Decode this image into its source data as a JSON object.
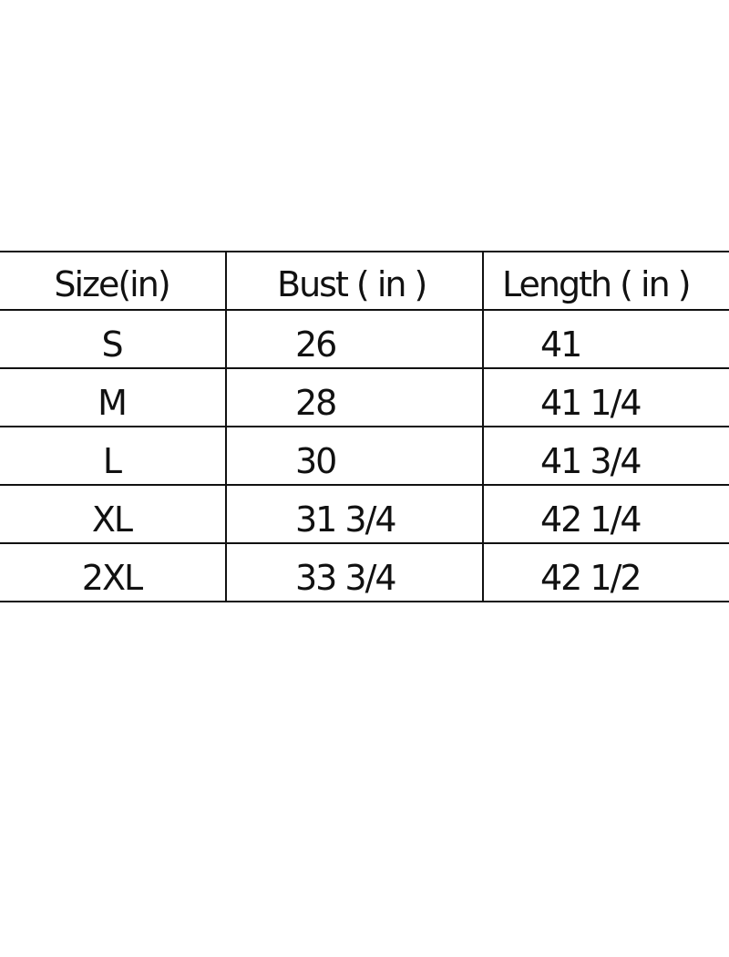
{
  "table": {
    "headers": [
      "Size(in)",
      "Bust ( in )",
      "Length ( in )"
    ],
    "rows": [
      [
        "S",
        "26",
        "41"
      ],
      [
        "M",
        "28",
        "41 1/4"
      ],
      [
        "L",
        "30",
        "41 3/4"
      ],
      [
        "XL",
        "31 3/4",
        "42 1/4"
      ],
      [
        "2XL",
        "33 3/4",
        "42 1/2"
      ]
    ]
  }
}
